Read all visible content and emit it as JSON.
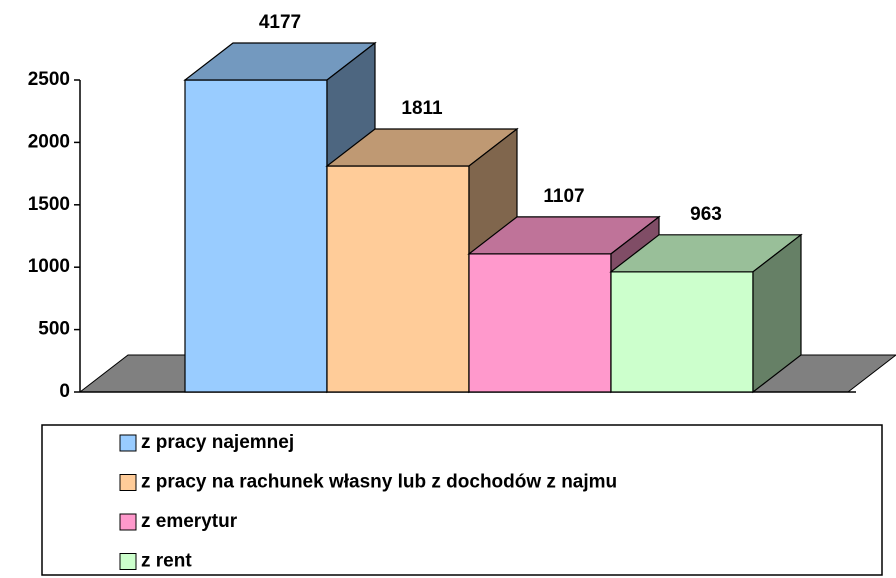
{
  "chart_data": {
    "type": "bar3d",
    "categories": [
      "z pracy najemnej",
      "z pracy na rachunek własny lub z dochodów z najmu",
      "z emerytur",
      "z rent"
    ],
    "values": [
      4177,
      1811,
      1107,
      963
    ],
    "colors": [
      "#99ccff",
      "#ffcc99",
      "#ff99cc",
      "#ccffcc"
    ],
    "ylim": [
      0,
      2500
    ],
    "yticks": [
      0,
      500,
      1000,
      1500,
      2000,
      2500
    ],
    "legend": "bottom"
  }
}
